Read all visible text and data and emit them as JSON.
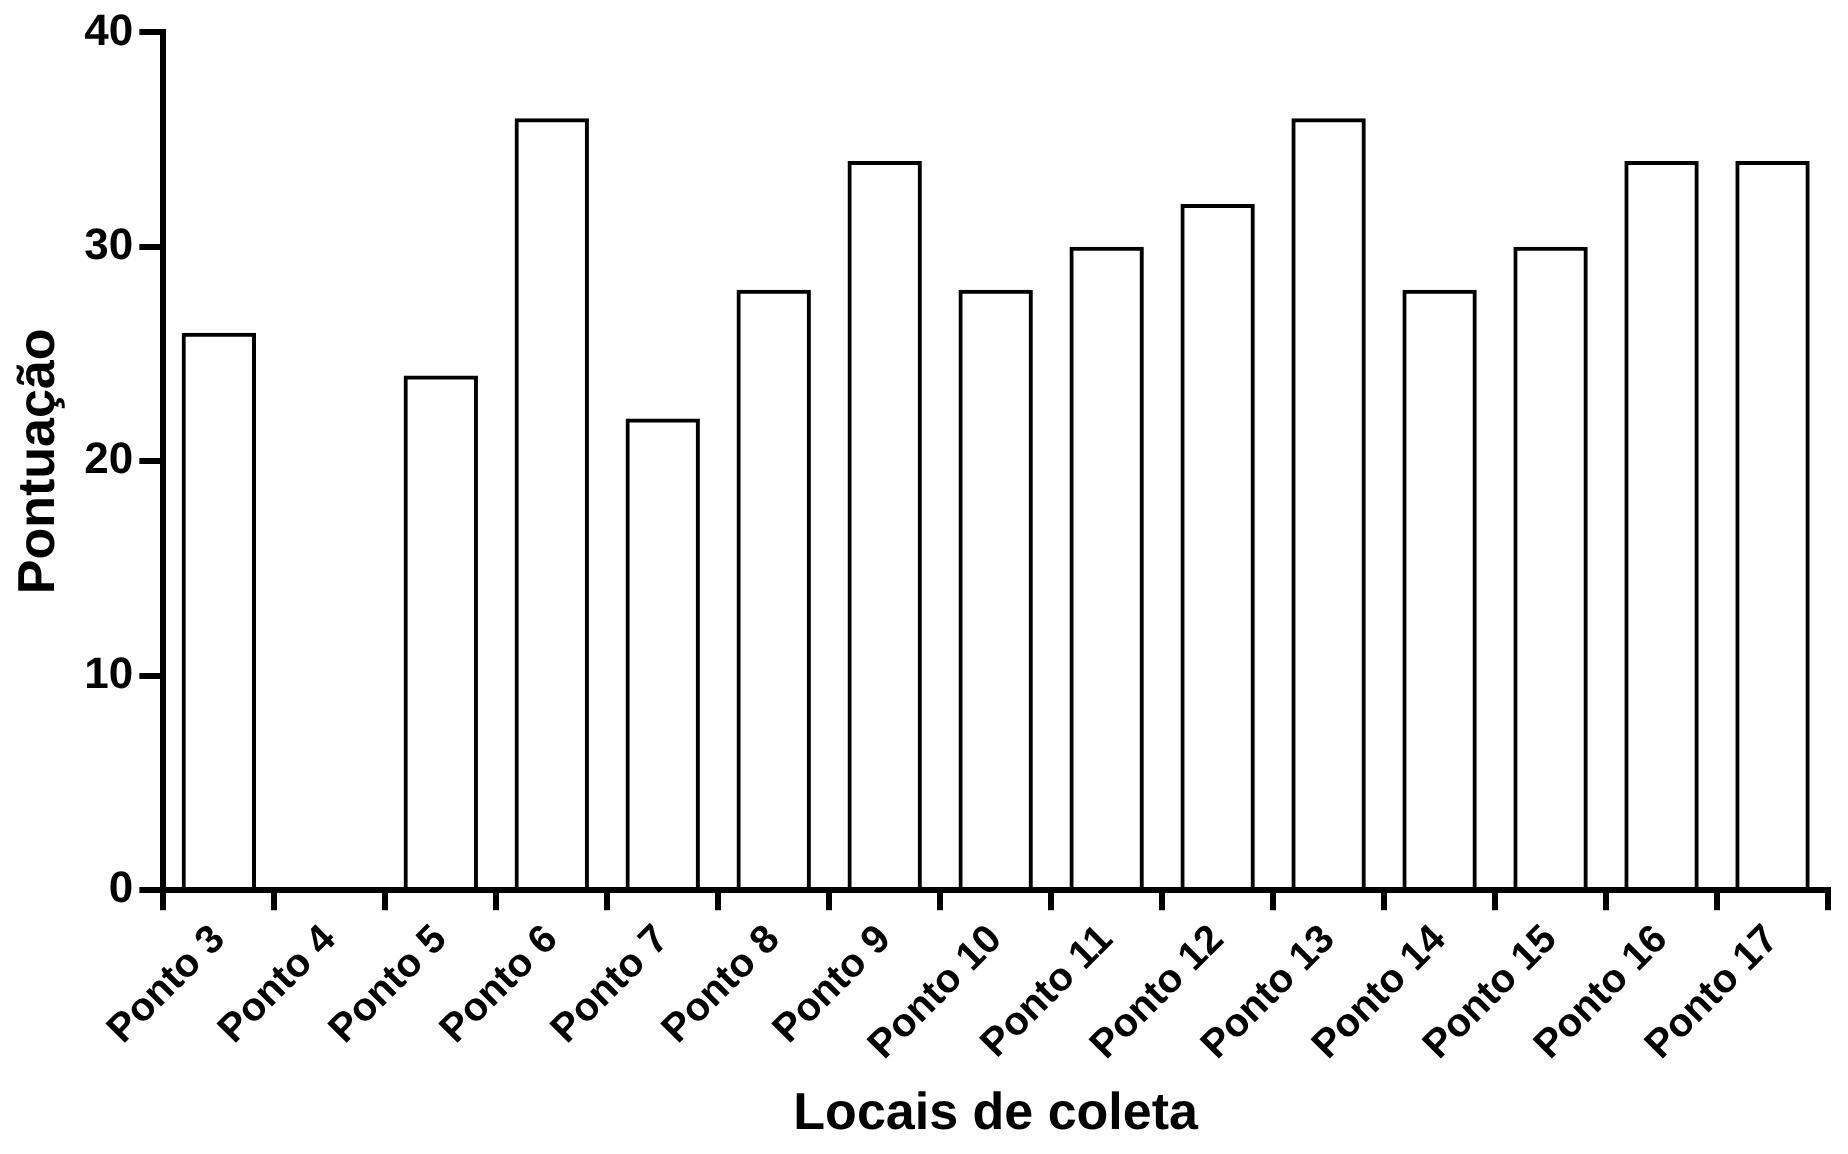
{
  "chart_data": {
    "type": "bar",
    "xlabel": "Locais de coleta",
    "ylabel": "Pontuação",
    "categories": [
      "Ponto 3",
      "Ponto 4",
      "Ponto 5",
      "Ponto 6",
      "Ponto 7",
      "Ponto 8",
      "Ponto 9",
      "Ponto 10",
      "Ponto 11",
      "Ponto 12",
      "Ponto 13",
      "Ponto 14",
      "Ponto 15",
      "Ponto 16",
      "Ponto 17"
    ],
    "values": [
      26,
      null,
      24,
      36,
      22,
      28,
      34,
      28,
      30,
      32,
      36,
      28,
      30,
      34,
      34
    ],
    "color": "#000000",
    "ylim": [
      0,
      40
    ],
    "yticks": [
      0,
      10,
      20,
      30,
      40
    ],
    "grid": false,
    "legend": false
  }
}
